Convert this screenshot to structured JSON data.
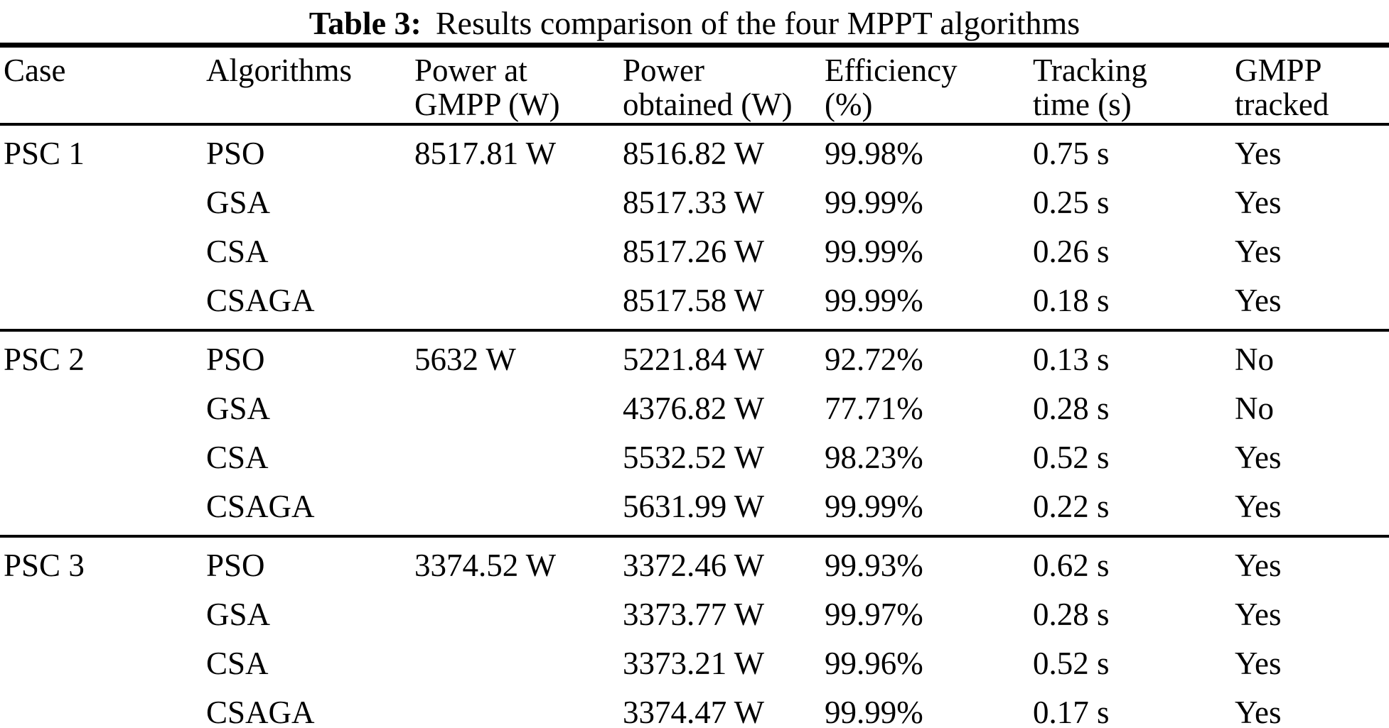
{
  "title": {
    "label": "Table 3:",
    "text": "Results comparison of the four MPPT algorithms"
  },
  "table": {
    "columns": [
      {
        "line1": "Case",
        "line2": ""
      },
      {
        "line1": "Algorithms",
        "line2": ""
      },
      {
        "line1": "Power at",
        "line2": "GMPP (W)"
      },
      {
        "line1": "Power",
        "line2": "obtained (W)"
      },
      {
        "line1": "Efficiency",
        "line2": "(%)"
      },
      {
        "line1": "Tracking",
        "line2": "time (s)"
      },
      {
        "line1": "GMPP",
        "line2": "tracked"
      }
    ],
    "sections": [
      {
        "case": "PSC 1",
        "power_at_gmpp": "8517.81 W",
        "rows": [
          {
            "algorithm": "PSO",
            "power_obtained": "8516.82 W",
            "efficiency": "99.98%",
            "tracking_time": "0.75 s",
            "gmpp_tracked": "Yes"
          },
          {
            "algorithm": "GSA",
            "power_obtained": "8517.33 W",
            "efficiency": "99.99%",
            "tracking_time": "0.25 s",
            "gmpp_tracked": "Yes"
          },
          {
            "algorithm": "CSA",
            "power_obtained": "8517.26 W",
            "efficiency": "99.99%",
            "tracking_time": "0.26 s",
            "gmpp_tracked": "Yes"
          },
          {
            "algorithm": "CSAGA",
            "power_obtained": "8517.58 W",
            "efficiency": "99.99%",
            "tracking_time": "0.18 s",
            "gmpp_tracked": "Yes"
          }
        ]
      },
      {
        "case": "PSC 2",
        "power_at_gmpp": "5632 W",
        "rows": [
          {
            "algorithm": "PSO",
            "power_obtained": "5221.84 W",
            "efficiency": "92.72%",
            "tracking_time": "0.13 s",
            "gmpp_tracked": "No"
          },
          {
            "algorithm": "GSA",
            "power_obtained": "4376.82 W",
            "efficiency": "77.71%",
            "tracking_time": "0.28 s",
            "gmpp_tracked": "No"
          },
          {
            "algorithm": "CSA",
            "power_obtained": "5532.52 W",
            "efficiency": "98.23%",
            "tracking_time": "0.52 s",
            "gmpp_tracked": "Yes"
          },
          {
            "algorithm": "CSAGA",
            "power_obtained": "5631.99 W",
            "efficiency": "99.99%",
            "tracking_time": "0.22 s",
            "gmpp_tracked": "Yes"
          }
        ]
      },
      {
        "case": "PSC 3",
        "power_at_gmpp": "3374.52 W",
        "rows": [
          {
            "algorithm": "PSO",
            "power_obtained": "3372.46 W",
            "efficiency": "99.93%",
            "tracking_time": "0.62 s",
            "gmpp_tracked": "Yes"
          },
          {
            "algorithm": "GSA",
            "power_obtained": "3373.77 W",
            "efficiency": "99.97%",
            "tracking_time": "0.28 s",
            "gmpp_tracked": "Yes"
          },
          {
            "algorithm": "CSA",
            "power_obtained": "3373.21 W",
            "efficiency": "99.96%",
            "tracking_time": "0.52 s",
            "gmpp_tracked": "Yes"
          },
          {
            "algorithm": "CSAGA",
            "power_obtained": "3374.47 W",
            "efficiency": "99.99%",
            "tracking_time": "0.17 s",
            "gmpp_tracked": "Yes"
          }
        ]
      }
    ]
  }
}
